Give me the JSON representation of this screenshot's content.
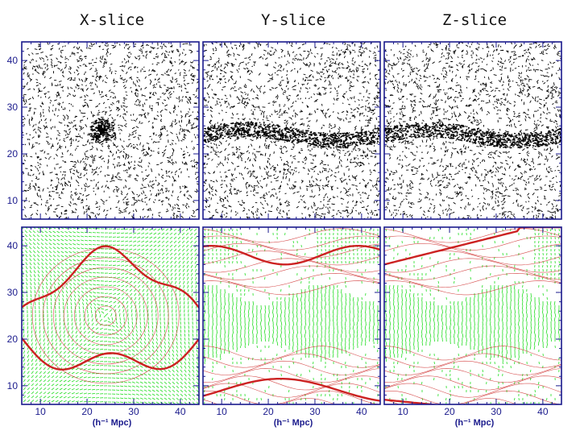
{
  "columns": [
    {
      "title": "X-slice",
      "xlabel": "(h⁻¹ Mpc)"
    },
    {
      "title": "Y-slice",
      "xlabel": "(h⁻¹ Mpc)"
    },
    {
      "title": "Z-slice",
      "xlabel": "(h⁻¹ Mpc)"
    }
  ],
  "axes": {
    "range": [
      6,
      44
    ],
    "xticks": [
      "10",
      "20",
      "30",
      "40"
    ],
    "yticks": [
      "10",
      "20",
      "30",
      "40"
    ]
  },
  "colors": {
    "frame": "#1a1a8c",
    "particles": "#000000",
    "vectors": "#22dd22",
    "contours": "#cc2222"
  }
}
